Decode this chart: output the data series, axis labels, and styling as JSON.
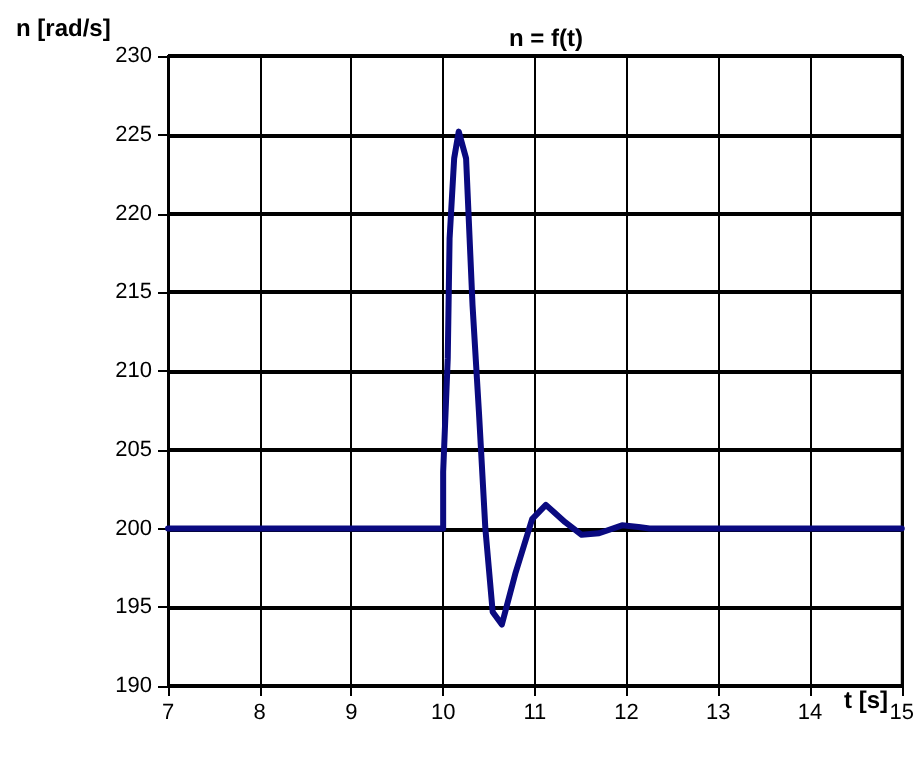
{
  "chart_data": {
    "type": "line",
    "title": "n = f(t)",
    "xlabel": "t [s]",
    "ylabel": "n [rad/s]",
    "series": [
      {
        "color": "#0a0a80",
        "x": [
          7,
          10,
          10.0,
          10.05,
          10.07,
          10.12,
          10.17,
          10.25,
          10.32,
          10.39,
          10.46,
          10.54,
          10.64,
          10.79,
          10.97,
          11.12,
          11.33,
          11.51,
          11.7,
          11.95,
          12.13,
          12.25,
          15
        ],
        "values": [
          200,
          200,
          203.6,
          210.8,
          218.4,
          223.5,
          225.2,
          223.5,
          214.2,
          207.4,
          200,
          194.7,
          193.9,
          197.2,
          200.6,
          201.5,
          200.4,
          199.6,
          199.7,
          200.2,
          200.1,
          200,
          200
        ]
      }
    ],
    "xlim": [
      7,
      15
    ],
    "xticks": [
      7,
      8,
      9,
      10,
      11,
      12,
      13,
      14,
      15
    ],
    "ylim": [
      190,
      230
    ],
    "yticks": [
      190,
      195,
      200,
      205,
      210,
      215,
      220,
      225,
      230
    ],
    "grid": true,
    "marker": "none",
    "line_style": "solid"
  }
}
